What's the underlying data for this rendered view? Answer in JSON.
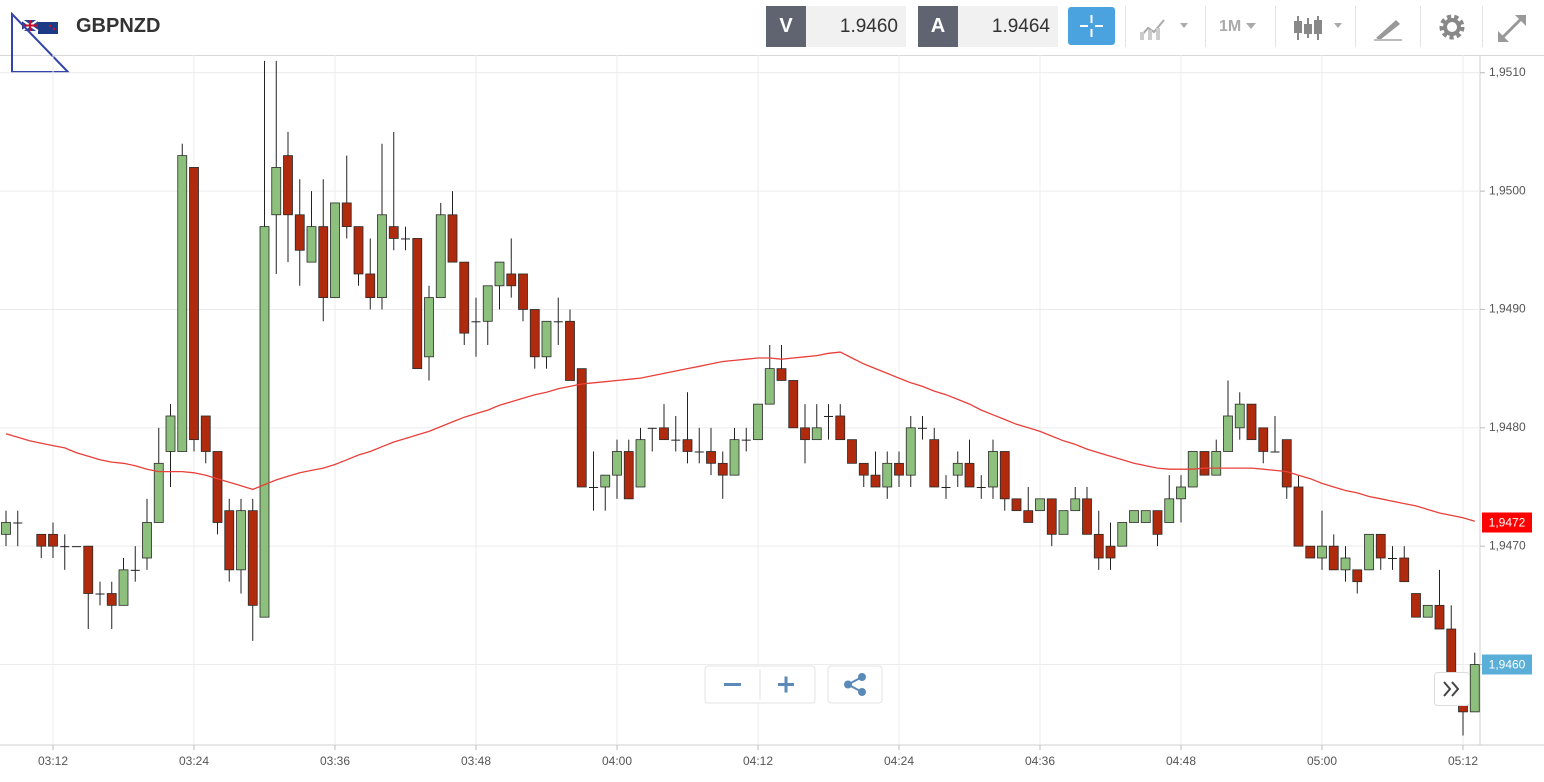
{
  "header": {
    "symbol": "GBPNZD",
    "sell_label": "V",
    "sell_price": "1.9460",
    "buy_label": "A",
    "buy_price": "1.9464",
    "timeframe": "1M"
  },
  "chart_data": {
    "type": "candlestick",
    "categories": [
      null,
      null,
      null,
      null,
      "03:12",
      null,
      null,
      null,
      null,
      null,
      null,
      null,
      null,
      null,
      null,
      null,
      "03:24",
      null,
      null,
      null,
      null,
      null,
      null,
      null,
      null,
      null,
      null,
      null,
      "03:36",
      null,
      null,
      null,
      null,
      null,
      null,
      null,
      null,
      null,
      null,
      null,
      "03:48",
      null,
      null,
      null,
      null,
      null,
      null,
      null,
      null,
      null,
      null,
      null,
      "04:00",
      null,
      null,
      null,
      null,
      null,
      null,
      null,
      null,
      null,
      null,
      null,
      "04:12",
      null,
      null,
      null,
      null,
      null,
      null,
      null,
      null,
      null,
      null,
      null,
      "04:24",
      null,
      null,
      null,
      null,
      null,
      null,
      null,
      null,
      null,
      null,
      null,
      "04:36",
      null,
      null,
      null,
      null,
      null,
      null,
      null,
      null,
      null,
      null,
      null,
      "04:48",
      null,
      null,
      null,
      null,
      null,
      null,
      null,
      null,
      null,
      null,
      null,
      "05:00",
      null,
      null,
      null,
      null,
      null,
      null,
      null,
      null,
      null,
      null,
      null,
      "05:12",
      null
    ],
    "open": [
      1.9471,
      1.9472,
      null,
      1.9471,
      1.9471,
      1.947,
      1.947,
      1.947,
      1.9466,
      1.9466,
      1.9465,
      1.9468,
      1.9469,
      1.9472,
      1.9478,
      1.9478,
      1.9502,
      1.9481,
      1.9478,
      1.9473,
      1.9468,
      1.9473,
      1.9464,
      1.9498,
      1.9503,
      1.9498,
      1.9494,
      1.9497,
      1.9491,
      1.9499,
      1.9497,
      1.9493,
      1.9491,
      1.9497,
      1.9496,
      1.9496,
      1.9486,
      1.9491,
      1.9498,
      1.9494,
      1.9489,
      1.9489,
      1.9492,
      1.9493,
      1.9493,
      1.949,
      1.9486,
      1.9489,
      1.9489,
      1.9485,
      1.9475,
      1.9475,
      1.9476,
      1.9478,
      1.9475,
      1.948,
      1.948,
      1.9479,
      1.9479,
      1.9478,
      1.9478,
      1.9477,
      1.9476,
      1.9479,
      1.9479,
      1.9482,
      1.9485,
      1.9484,
      1.948,
      1.9479,
      1.9481,
      1.9481,
      1.9479,
      1.9477,
      1.9476,
      1.9475,
      1.9477,
      1.9476,
      1.948,
      1.9479,
      1.9475,
      1.9476,
      1.9477,
      1.9475,
      1.9475,
      1.9478,
      1.9474,
      1.9473,
      1.9473,
      1.9474,
      1.9471,
      1.9473,
      1.9474,
      1.9471,
      1.947,
      1.947,
      1.9472,
      1.9472,
      1.9473,
      1.9472,
      1.9474,
      1.9475,
      1.9478,
      1.9476,
      1.9478,
      1.948,
      1.9482,
      1.948,
      1.9478,
      1.9479,
      1.9475,
      1.947,
      1.9469,
      1.947,
      1.9468,
      1.9468,
      1.9468,
      1.9471,
      1.9469,
      1.9469,
      1.9466,
      1.9464,
      1.9465,
      1.9463,
      1.9459,
      1.9456
    ],
    "high": [
      1.9473,
      1.9473,
      null,
      1.9471,
      1.9472,
      1.9471,
      1.947,
      1.947,
      1.9467,
      1.9467,
      1.9469,
      1.947,
      1.9474,
      1.948,
      1.9482,
      1.9504,
      1.9502,
      1.9481,
      1.9478,
      1.9474,
      1.9474,
      1.9474,
      1.9511,
      1.9511,
      1.9505,
      1.9501,
      1.95,
      1.9501,
      1.9499,
      1.9503,
      1.9497,
      1.9496,
      1.9504,
      1.9505,
      1.9497,
      1.9496,
      1.9492,
      1.9499,
      1.95,
      1.9494,
      1.9491,
      1.9492,
      1.9494,
      1.9496,
      1.9493,
      1.949,
      1.9489,
      1.9491,
      1.949,
      1.9485,
      1.9478,
      1.9476,
      1.9479,
      1.9479,
      1.948,
      1.948,
      1.9482,
      1.9481,
      1.9483,
      1.948,
      1.948,
      1.9478,
      1.948,
      1.948,
      1.9482,
      1.9487,
      1.9487,
      1.9484,
      1.9482,
      1.9482,
      1.9482,
      1.9482,
      1.9479,
      1.9477,
      1.9478,
      1.9478,
      1.9478,
      1.9481,
      1.9481,
      1.948,
      1.9476,
      1.9478,
      1.9479,
      1.9476,
      1.9479,
      1.9478,
      1.9474,
      1.9475,
      1.9474,
      1.9474,
      1.9473,
      1.9475,
      1.9475,
      1.9473,
      1.9472,
      1.9472,
      1.9473,
      1.9473,
      1.9473,
      1.9476,
      1.9476,
      1.9478,
      1.9478,
      1.9479,
      1.9484,
      1.9483,
      1.9482,
      1.948,
      1.9481,
      1.9479,
      1.9476,
      1.947,
      1.9473,
      1.9471,
      1.947,
      1.9468,
      1.9471,
      1.9471,
      1.947,
      1.947,
      1.9466,
      1.9465,
      1.9468,
      1.9465,
      1.9459,
      1.9461
    ],
    "low": [
      1.947,
      1.947,
      null,
      1.9469,
      1.9469,
      1.9468,
      1.947,
      1.9463,
      1.9465,
      1.9463,
      1.9465,
      1.9467,
      1.9468,
      1.9472,
      1.9475,
      1.9478,
      1.9478,
      1.9477,
      1.9471,
      1.9467,
      1.9466,
      1.9462,
      1.9464,
      1.9493,
      1.9494,
      1.9492,
      1.9494,
      1.9489,
      1.9491,
      1.9496,
      1.9492,
      1.949,
      1.949,
      1.9495,
      1.9495,
      1.9485,
      1.9484,
      1.9491,
      1.9494,
      1.9487,
      1.9486,
      1.9487,
      1.949,
      1.9491,
      1.9489,
      1.9485,
      1.9485,
      1.9487,
      1.9484,
      1.9475,
      1.9473,
      1.9473,
      1.9474,
      1.9474,
      1.9475,
      1.9478,
      1.9479,
      1.9478,
      1.9477,
      1.9477,
      1.9476,
      1.9474,
      1.9476,
      1.9478,
      1.9479,
      1.9482,
      1.9484,
      1.948,
      1.9477,
      1.9479,
      1.9479,
      1.9479,
      1.9477,
      1.9475,
      1.9475,
      1.9474,
      1.9475,
      1.9475,
      1.9479,
      1.9475,
      1.9474,
      1.9475,
      1.9475,
      1.9474,
      1.9474,
      1.9473,
      1.9473,
      1.9472,
      1.9473,
      1.947,
      1.9471,
      1.9473,
      1.9471,
      1.9468,
      1.9468,
      1.947,
      1.9472,
      1.9472,
      1.947,
      1.9472,
      1.9472,
      1.9475,
      1.9476,
      1.9476,
      1.9478,
      1.9479,
      1.9479,
      1.9477,
      1.9478,
      1.9474,
      1.947,
      1.9469,
      1.9468,
      1.9468,
      1.9467,
      1.9466,
      1.9468,
      1.9468,
      1.9468,
      1.9467,
      1.9464,
      1.9464,
      1.9463,
      1.9457,
      1.9454,
      1.9456
    ],
    "close": [
      1.9472,
      1.9472,
      null,
      1.947,
      1.947,
      1.947,
      1.947,
      1.9466,
      1.9466,
      1.9465,
      1.9468,
      1.9468,
      1.9472,
      1.9477,
      1.9481,
      1.9503,
      1.9479,
      1.9478,
      1.9472,
      1.9468,
      1.9473,
      1.9465,
      1.9497,
      1.9502,
      1.9498,
      1.9495,
      1.9497,
      1.9491,
      1.9499,
      1.9497,
      1.9493,
      1.9491,
      1.9498,
      1.9496,
      1.9496,
      1.9485,
      1.9491,
      1.9498,
      1.9494,
      1.9488,
      1.9489,
      1.9492,
      1.9494,
      1.9492,
      1.949,
      1.9486,
      1.9489,
      1.9489,
      1.9484,
      1.9475,
      1.9475,
      1.9476,
      1.9478,
      1.9474,
      1.9479,
      1.948,
      1.9479,
      1.9479,
      1.9478,
      1.9478,
      1.9477,
      1.9476,
      1.9479,
      1.9479,
      1.9482,
      1.9485,
      1.9484,
      1.948,
      1.9479,
      1.948,
      1.9481,
      1.9479,
      1.9477,
      1.9476,
      1.9475,
      1.9477,
      1.9476,
      1.948,
      1.948,
      1.9475,
      1.9475,
      1.9477,
      1.9475,
      1.9475,
      1.9478,
      1.9474,
      1.9473,
      1.9472,
      1.9474,
      1.9471,
      1.9473,
      1.9474,
      1.9471,
      1.9469,
      1.9469,
      1.9472,
      1.9473,
      1.9473,
      1.9471,
      1.9474,
      1.9475,
      1.9478,
      1.9476,
      1.9478,
      1.9481,
      1.9482,
      1.9479,
      1.9478,
      1.9478,
      1.9475,
      1.947,
      1.9469,
      1.947,
      1.9468,
      1.9469,
      1.9467,
      1.9471,
      1.9469,
      1.9469,
      1.9467,
      1.9464,
      1.9465,
      1.9463,
      1.9459,
      1.9456,
      1.946
    ],
    "up_color": "#8dc07c",
    "down_color": "#b02a0e",
    "moving_average": {
      "color": "#e8403a",
      "values": [
        1.94795,
        1.94792,
        1.94789,
        1.94787,
        1.94785,
        1.94783,
        1.94779,
        1.94776,
        1.94773,
        1.94771,
        1.9477,
        1.94768,
        1.94765,
        1.94763,
        1.94763,
        1.94763,
        1.94762,
        1.9476,
        1.94757,
        1.94754,
        1.94751,
        1.94748,
        1.94752,
        1.94756,
        1.94759,
        1.94762,
        1.94764,
        1.94766,
        1.94769,
        1.94773,
        1.94777,
        1.9478,
        1.94784,
        1.94788,
        1.94791,
        1.94794,
        1.94797,
        1.94801,
        1.94805,
        1.94809,
        1.94812,
        1.94815,
        1.94819,
        1.94822,
        1.94825,
        1.94828,
        1.9483,
        1.94833,
        1.94835,
        1.94837,
        1.94838,
        1.94839,
        1.9484,
        1.94841,
        1.94842,
        1.94844,
        1.94846,
        1.94848,
        1.9485,
        1.94852,
        1.94854,
        1.94856,
        1.94857,
        1.94858,
        1.94859,
        1.94859,
        1.94858,
        1.94859,
        1.9486,
        1.94861,
        1.94863,
        1.94864,
        1.94859,
        1.94854,
        1.9485,
        1.94846,
        1.94842,
        1.94838,
        1.94835,
        1.94831,
        1.94828,
        1.94824,
        1.9482,
        1.94815,
        1.94811,
        1.94807,
        1.94803,
        1.948,
        1.94797,
        1.94793,
        1.94789,
        1.94786,
        1.94782,
        1.94779,
        1.94776,
        1.94773,
        1.9477,
        1.94768,
        1.94766,
        1.94765,
        1.94765,
        1.94765,
        1.94766,
        1.94766,
        1.94766,
        1.94766,
        1.94766,
        1.94765,
        1.94764,
        1.94763,
        1.9476,
        1.94757,
        1.94753,
        1.9475,
        1.94747,
        1.94745,
        1.94742,
        1.9474,
        1.94738,
        1.94736,
        1.94734,
        1.94731,
        1.94728,
        1.94726,
        1.94724,
        1.94721
      ]
    },
    "ylim": [
      1.94532,
      1.95115
    ],
    "yticks": [
      {
        "value": 1.951,
        "label": "1,9510"
      },
      {
        "value": 1.95,
        "label": "1,9500"
      },
      {
        "value": 1.949,
        "label": "1,9490"
      },
      {
        "value": 1.948,
        "label": "1,9480"
      },
      {
        "value": 1.947,
        "label": "1,9470"
      },
      {
        "value": 1.946,
        "label": "1,9460"
      }
    ],
    "grid": true,
    "price_badges": [
      {
        "value": 1.9472,
        "label": "1,9472",
        "color": "#ff0000"
      },
      {
        "value": 1.946,
        "label": "1,9460",
        "color": "#5aafd9"
      }
    ]
  }
}
